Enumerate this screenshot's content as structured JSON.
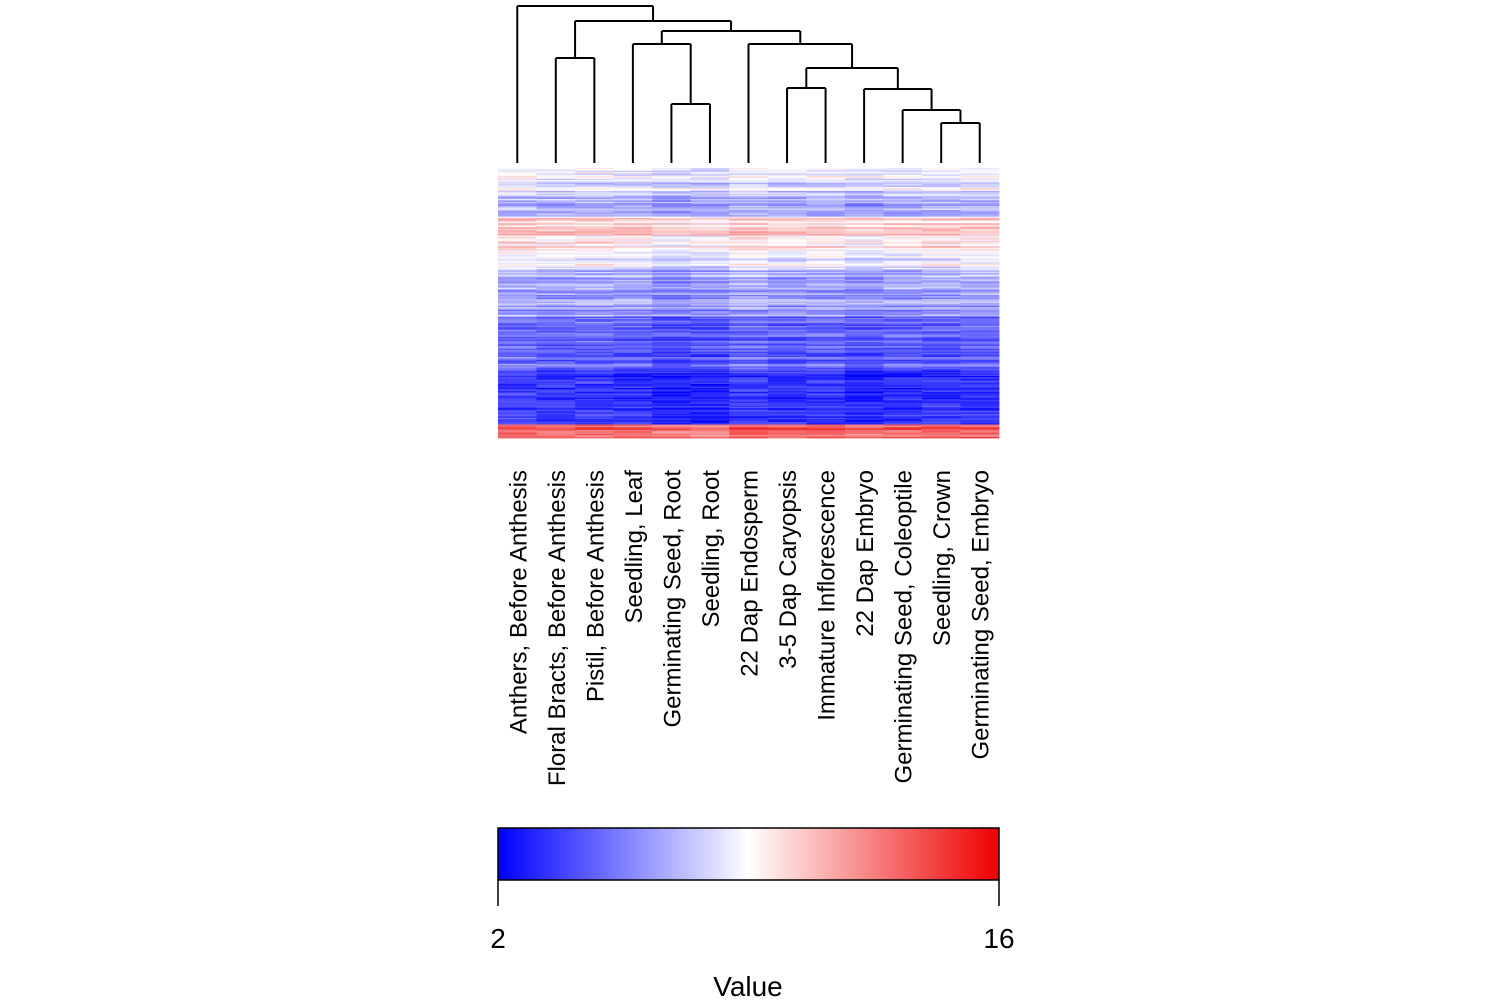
{
  "chart_data": {
    "type": "heatmap",
    "columns": [
      "Anthers, Before Anthesis",
      "Floral Bracts, Before Anthesis",
      "Pistil, Before Anthesis",
      "Seedling, Leaf",
      "Germinating Seed, Root",
      "Seedling, Root",
      "22 Dap Endosperm",
      "3-5 Dap Caryopsis",
      "Immature Inflorescence",
      "22 Dap Embryo",
      "Germinating Seed, Coleoptile",
      "Seedling, Crown",
      "Germinating Seed, Embryo"
    ],
    "dendrogram": "column clustering tree",
    "color_scale": {
      "min": 2,
      "max": 16,
      "low_color": "#0000ff",
      "mid_color": "#ffffff",
      "high_color": "#ee0000",
      "min_label": "2",
      "max_label": "16",
      "title": "Value"
    },
    "row_count": 200
  }
}
